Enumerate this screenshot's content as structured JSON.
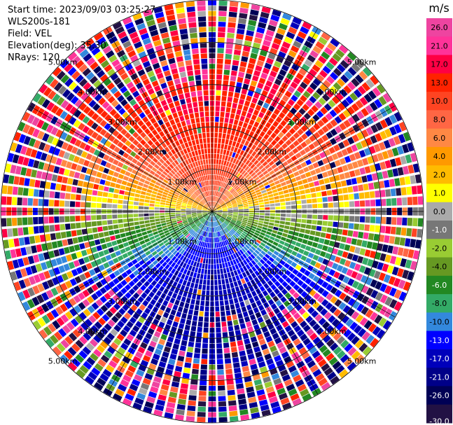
{
  "header": {
    "start_time": "Start time: 2023/09/03 03:25:27",
    "station": "WLS200s-181",
    "field": "Field: VEL",
    "elevation": "Elevation(deg): 35.30",
    "nrays": "NRays: 120"
  },
  "chart_data": {
    "type": "heatmap",
    "projection": "polar-ppi",
    "field": "VEL",
    "elevation_deg": 35.3,
    "n_rays": 120,
    "max_range_km": 5.0,
    "range_rings_km": [
      1,
      2,
      3,
      4,
      5
    ],
    "ring_labels": [
      "1.00km",
      "2.00km",
      "3.00km",
      "4.00km",
      "5.00km"
    ],
    "spokes_deg": [
      0,
      30,
      60,
      90,
      120,
      150,
      180,
      210,
      240,
      270,
      300,
      330
    ],
    "velocity_pattern": {
      "description_free": true,
      "peak_positive_ms": 17,
      "peak_negative_ms": -17,
      "positive_sector": "north",
      "negative_sector": "south",
      "near_surface_speed_ms": 8,
      "speed_increase_per_km_ms": 4
    },
    "colorbar": {
      "unit": "m/s",
      "ticks": [
        "26.0",
        "21.0",
        "17.0",
        "13.0",
        "10.0",
        "8.0",
        "6.0",
        "4.0",
        "2.0",
        "1.0",
        "0.0",
        "-1.0",
        "-2.0",
        "-4.0",
        "-6.0",
        "-8.0",
        "-10.0",
        "-13.0",
        "-17.0",
        "-21.0",
        "-26.0",
        "-30.0"
      ],
      "bounds": [
        30,
        26,
        21,
        17,
        13,
        10,
        8,
        6,
        4,
        2,
        1,
        0,
        -1,
        -2,
        -4,
        -6,
        -8,
        -10,
        -13,
        -17,
        -21,
        -26,
        -30
      ],
      "colors": [
        "#ee44a0",
        "#ff3399",
        "#ff0044",
        "#ff2200",
        "#ff4422",
        "#ff6644",
        "#ff8844",
        "#ff9900",
        "#ffbb00",
        "#ffff00",
        "#aaaaaa",
        "#777777",
        "#99cc33",
        "#669922",
        "#228822",
        "#33aa66",
        "#3388dd",
        "#0000ff",
        "#0000bb",
        "#000088",
        "#000055",
        "#221144"
      ],
      "label_colors": [
        "#000",
        "#000",
        "#000",
        "#000",
        "#000",
        "#000",
        "#000",
        "#000",
        "#000",
        "#000",
        "#000",
        "#fff",
        "#000",
        "#000",
        "#fff",
        "#000",
        "#000",
        "#fff",
        "#fff",
        "#fff",
        "#fff",
        "#fff"
      ]
    }
  }
}
